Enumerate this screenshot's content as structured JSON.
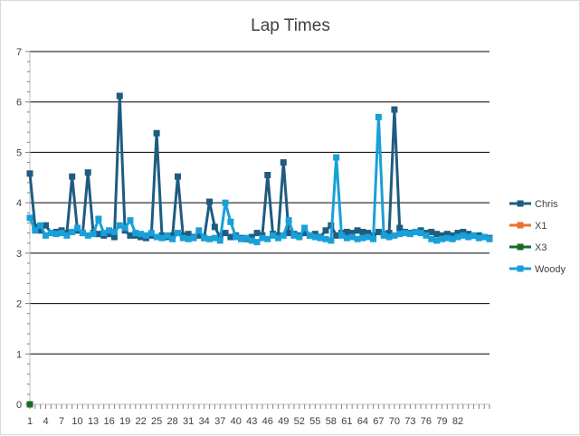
{
  "chart_data": {
    "type": "line",
    "title": "Lap Times",
    "xlabel": "",
    "ylabel": "",
    "ylim": [
      0,
      7
    ],
    "y_ticks": [
      0,
      1,
      2,
      3,
      4,
      5,
      6,
      7
    ],
    "x_tick_labels": [
      "1",
      "4",
      "7",
      "10",
      "13",
      "16",
      "19",
      "22",
      "25",
      "28",
      "31",
      "34",
      "37",
      "40",
      "43",
      "46",
      "49",
      "52",
      "55",
      "58",
      "61",
      "64",
      "67",
      "70",
      "73",
      "76",
      "79",
      "82"
    ],
    "gridlines": true,
    "legend_position": "right",
    "series": [
      {
        "name": "Chris",
        "color": "#1F5C80",
        "x": [
          1,
          2,
          3,
          4,
          5,
          6,
          7,
          8,
          9,
          10,
          11,
          12,
          13,
          14,
          15,
          16,
          17,
          18,
          19,
          20,
          21,
          22,
          23,
          24,
          25,
          26,
          27,
          28,
          29,
          30,
          31,
          32,
          33,
          34,
          35,
          36,
          37,
          38,
          39,
          40,
          41,
          42,
          43,
          44,
          45,
          46,
          47,
          48,
          49,
          50,
          51,
          52,
          53,
          54,
          55,
          56,
          57,
          58,
          59,
          60,
          61,
          62,
          63,
          64,
          65,
          66,
          67,
          68,
          69,
          70,
          71,
          72,
          73,
          74,
          75,
          76,
          77,
          78,
          79,
          80,
          81,
          82,
          83,
          84,
          85,
          86,
          87,
          88
        ],
        "values": [
          4.58,
          3.52,
          3.45,
          3.55,
          3.4,
          3.42,
          3.45,
          3.4,
          4.52,
          3.45,
          3.4,
          4.6,
          3.4,
          3.38,
          3.35,
          3.38,
          3.32,
          6.12,
          3.45,
          3.35,
          3.35,
          3.32,
          3.3,
          3.35,
          5.38,
          3.35,
          3.32,
          3.35,
          4.52,
          3.35,
          3.38,
          3.32,
          3.35,
          3.3,
          4.02,
          3.52,
          3.32,
          3.4,
          3.32,
          3.35,
          3.3,
          3.28,
          3.32,
          3.4,
          3.35,
          4.55,
          3.38,
          3.35,
          4.8,
          3.4,
          3.38,
          3.35,
          3.4,
          3.35,
          3.38,
          3.32,
          3.45,
          3.55,
          3.35,
          3.4,
          3.42,
          3.4,
          3.45,
          3.42,
          3.4,
          3.35,
          3.42,
          3.38,
          3.4,
          5.85,
          3.5,
          3.42,
          3.4,
          3.42,
          3.45,
          3.4,
          3.42,
          3.38,
          3.35,
          3.38,
          3.35,
          3.4,
          3.42,
          3.38,
          3.35,
          3.35,
          3.32,
          3.3
        ]
      },
      {
        "name": "X1",
        "color": "#E97132",
        "x": [
          1
        ],
        "values": [
          0
        ]
      },
      {
        "name": "X3",
        "color": "#196B24",
        "x": [
          1
        ],
        "values": [
          0
        ]
      },
      {
        "name": "Woody",
        "color": "#18A0D8",
        "x": [
          1,
          2,
          3,
          4,
          5,
          6,
          7,
          8,
          9,
          10,
          11,
          12,
          13,
          14,
          15,
          16,
          17,
          18,
          19,
          20,
          21,
          22,
          23,
          24,
          25,
          26,
          27,
          28,
          29,
          30,
          31,
          32,
          33,
          34,
          35,
          36,
          37,
          38,
          39,
          40,
          41,
          42,
          43,
          44,
          45,
          46,
          47,
          48,
          49,
          50,
          51,
          52,
          53,
          54,
          55,
          56,
          57,
          58,
          59,
          60,
          61,
          62,
          63,
          64,
          65,
          66,
          67,
          68,
          69,
          70,
          71,
          72,
          73,
          74,
          75,
          76,
          77,
          78,
          79,
          80,
          81,
          82,
          83,
          84,
          85,
          86,
          87,
          88
        ],
        "values": [
          3.7,
          3.45,
          3.55,
          3.35,
          3.4,
          3.38,
          3.4,
          3.35,
          3.42,
          3.5,
          3.4,
          3.35,
          3.38,
          3.68,
          3.4,
          3.45,
          3.42,
          3.55,
          3.5,
          3.65,
          3.4,
          3.38,
          3.35,
          3.4,
          3.32,
          3.3,
          3.35,
          3.28,
          3.4,
          3.3,
          3.28,
          3.3,
          3.45,
          3.3,
          3.28,
          3.3,
          3.25,
          4.0,
          3.62,
          3.32,
          3.28,
          3.3,
          3.25,
          3.22,
          3.3,
          3.28,
          3.35,
          3.3,
          3.35,
          3.65,
          3.35,
          3.32,
          3.5,
          3.35,
          3.32,
          3.3,
          3.28,
          3.25,
          4.9,
          3.35,
          3.3,
          3.32,
          3.28,
          3.3,
          3.32,
          3.28,
          5.7,
          3.35,
          3.32,
          3.35,
          3.38,
          3.4,
          3.38,
          3.42,
          3.4,
          3.35,
          3.28,
          3.25,
          3.28,
          3.3,
          3.28,
          3.32,
          3.35,
          3.32,
          3.35,
          3.3,
          3.32,
          3.28
        ]
      }
    ]
  }
}
